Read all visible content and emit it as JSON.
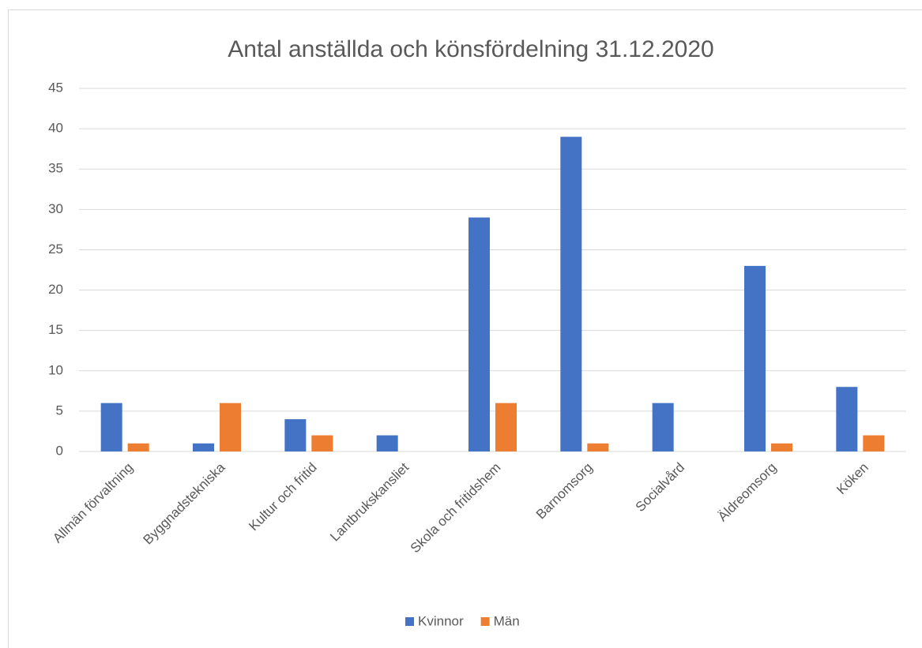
{
  "chart_data": {
    "type": "bar",
    "title": "Antal anställda och könsfördelning 31.12.2020",
    "categories": [
      "Allmän förvaltning",
      "Byggnadstekniska",
      "Kultur och fritid",
      "Lantbrukskansliet",
      "Skola och fritidshem",
      "Barnomsorg",
      "Socialvård",
      "Äldreomsorg",
      "Köken"
    ],
    "series": [
      {
        "name": "Kvinnor",
        "color": "#4472c4",
        "values": [
          6,
          1,
          4,
          2,
          29,
          39,
          6,
          23,
          8
        ]
      },
      {
        "name": "Män",
        "color": "#ed7d31",
        "values": [
          1,
          6,
          2,
          0,
          6,
          1,
          0,
          1,
          2
        ]
      }
    ],
    "ylim": [
      0,
      45
    ],
    "yticks": [
      0,
      5,
      10,
      15,
      20,
      25,
      30,
      35,
      40,
      45
    ],
    "grid": true,
    "legend": "bottom"
  }
}
